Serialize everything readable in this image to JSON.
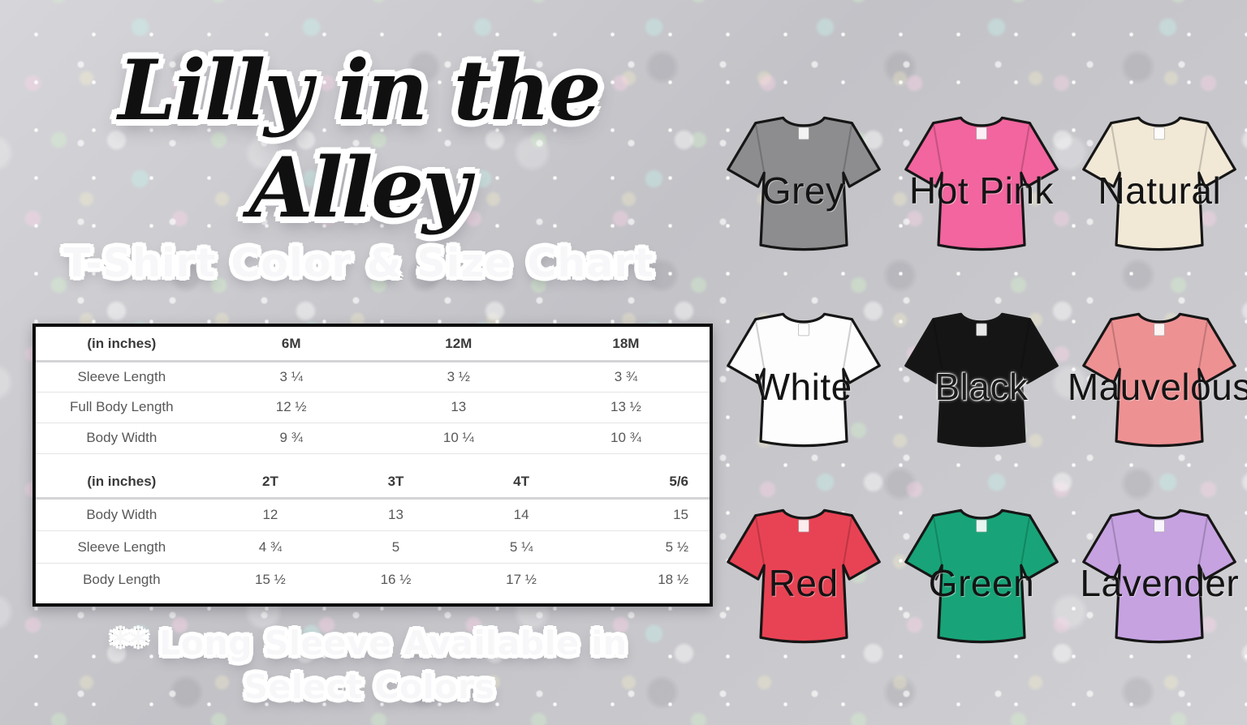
{
  "brand": {
    "title": "Lilly in the Alley",
    "subtitle": "T-Shirt Color & Size Chart"
  },
  "size_chart": {
    "sections": [
      {
        "unit_label": "(in inches)",
        "sizes": [
          "6M",
          "12M",
          "18M"
        ],
        "rows": [
          {
            "label": "Sleeve Length",
            "values": [
              "3 ¼",
              "3 ½",
              "3 ¾"
            ]
          },
          {
            "label": "Full Body Length",
            "values": [
              "12 ½",
              "13",
              "13 ½"
            ]
          },
          {
            "label": "Body Width",
            "values": [
              "9 ¾",
              "10 ¼",
              "10 ¾"
            ]
          }
        ]
      },
      {
        "unit_label": "(in inches)",
        "sizes": [
          "2T",
          "3T",
          "4T",
          "5/6"
        ],
        "rows": [
          {
            "label": "Body Width",
            "values": [
              "12",
              "13",
              "14",
              "15"
            ]
          },
          {
            "label": "Sleeve Length",
            "values": [
              "4 ¾",
              "5",
              "5 ¼",
              "5 ½"
            ]
          },
          {
            "label": "Body Length",
            "values": [
              "15 ½",
              "16 ½",
              "17 ½",
              "18 ½"
            ]
          }
        ]
      }
    ]
  },
  "footnote": {
    "line1": "** Long Sleeve Available in",
    "line2": "Select Colors"
  },
  "shirts": [
    {
      "label": "Grey",
      "fill": "#8d8c8f",
      "label_style": "dark"
    },
    {
      "label": "Hot Pink",
      "fill": "#f2659e",
      "label_style": "dark"
    },
    {
      "label": "Natural",
      "fill": "#f1e8d6",
      "label_style": "dark"
    },
    {
      "label": "White",
      "fill": "#fdfdfd",
      "label_style": "dark"
    },
    {
      "label": "Black",
      "fill": "#151515",
      "label_style": "light-outline"
    },
    {
      "label": "Mauvelous",
      "fill": "#ee9193",
      "label_style": "dark"
    },
    {
      "label": "Red",
      "fill": "#e84354",
      "label_style": "dark"
    },
    {
      "label": "Green",
      "fill": "#18a478",
      "label_style": "dark"
    },
    {
      "label": "Lavender",
      "fill": "#c6a2e1",
      "label_style": "dark"
    }
  ],
  "ui_colors": {
    "background_base": "#cbcbcf",
    "table_border": "#0d0d0d",
    "table_text": "#585858",
    "table_header_text": "#3a3a3a"
  }
}
